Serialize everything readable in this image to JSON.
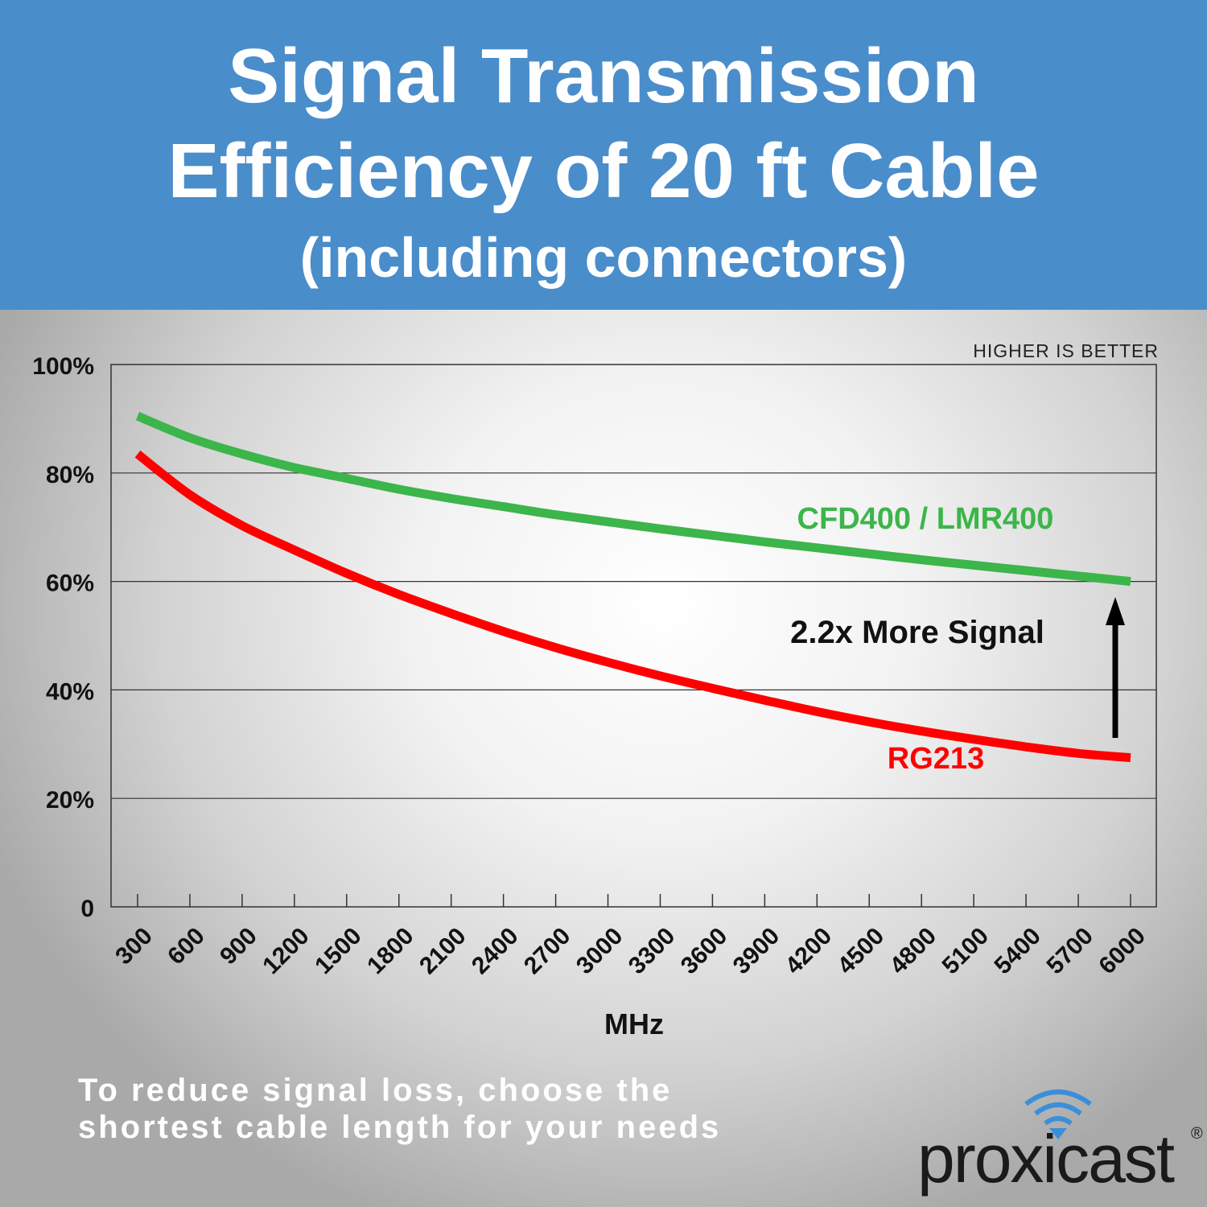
{
  "header": {
    "line1": "Signal Transmission",
    "line2": "Efficiency of 20 ft Cable",
    "line3": "(including connectors)"
  },
  "chart_data": {
    "type": "line",
    "title": "Signal Transmission Efficiency of 20 ft Cable (including connectors)",
    "xlabel": "MHz",
    "ylabel": "",
    "x": [
      300,
      600,
      900,
      1200,
      1500,
      1800,
      2100,
      2400,
      2700,
      3000,
      3300,
      3600,
      3900,
      4200,
      4500,
      4800,
      5100,
      5400,
      5700,
      6000
    ],
    "x_tick_labels": [
      "300",
      "600",
      "900",
      "1200",
      "1500",
      "1800",
      "2100",
      "2400",
      "2700",
      "3000",
      "3300",
      "3600",
      "3900",
      "4200",
      "4500",
      "4800",
      "5100",
      "5400",
      "5700",
      "6000"
    ],
    "ylim": [
      0,
      100
    ],
    "y_ticks": [
      0,
      20,
      40,
      60,
      80,
      100
    ],
    "y_tick_labels": [
      "0",
      "20%",
      "40%",
      "60%",
      "80%",
      "100%"
    ],
    "grid": "horizontal",
    "series": [
      {
        "name": "CFD400 / LMR400",
        "color": "#3cb54a",
        "values": [
          90.5,
          86.5,
          83.5,
          81,
          79,
          77,
          75.3,
          73.8,
          72.3,
          71,
          69.7,
          68.5,
          67.3,
          66.2,
          65.1,
          64,
          63,
          62,
          61,
          60
        ]
      },
      {
        "name": "RG213",
        "color": "#ff0000",
        "values": [
          83.5,
          76,
          70.3,
          65.8,
          61.5,
          57.6,
          54.1,
          50.8,
          47.8,
          45.1,
          42.6,
          40.3,
          38.1,
          36,
          34.1,
          32.4,
          30.9,
          29.5,
          28.3,
          27.5
        ]
      }
    ],
    "annotations": {
      "corner_note": "HIGHER IS BETTER",
      "comparison": "2.2x More Signal"
    }
  },
  "footer": {
    "note_line1": "To reduce signal loss, choose the",
    "note_line2": "shortest cable length for your needs"
  },
  "logo": {
    "text": "proxicast",
    "registered": "®",
    "wifi_color": "#3b8fd9"
  }
}
